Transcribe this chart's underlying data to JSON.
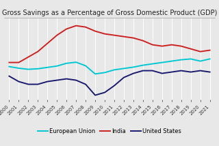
{
  "title": "Gross Savings as a Percentage of Gross Domestic Product (GDP)",
  "years": [
    2000,
    2001,
    2002,
    2003,
    2004,
    2005,
    2006,
    2007,
    2008,
    2009,
    2010,
    2011,
    2012,
    2013,
    2014,
    2015,
    2016,
    2017,
    2018,
    2019,
    2020,
    2021
  ],
  "european_union": [
    22.0,
    21.4,
    21.0,
    21.2,
    21.7,
    22.2,
    23.2,
    23.6,
    22.3,
    19.3,
    19.8,
    20.8,
    21.3,
    21.8,
    22.5,
    23.0,
    23.5,
    24.0,
    24.5,
    24.8,
    24.0,
    24.8
  ],
  "india": [
    23.5,
    23.5,
    25.5,
    27.5,
    30.5,
    33.5,
    35.8,
    37.0,
    36.5,
    35.0,
    34.0,
    33.5,
    33.0,
    32.5,
    31.5,
    30.0,
    29.5,
    30.0,
    29.5,
    28.5,
    27.5,
    28.0
  ],
  "united_states": [
    18.5,
    16.5,
    15.5,
    15.5,
    16.5,
    17.0,
    17.5,
    17.0,
    15.5,
    11.5,
    12.5,
    15.0,
    18.0,
    19.5,
    20.5,
    20.5,
    19.5,
    20.0,
    20.5,
    20.0,
    20.5,
    20.0
  ],
  "eu_color": "#00c8d2",
  "india_color": "#cc2222",
  "us_color": "#1a1a6e",
  "background_color": "#e8e8e8",
  "plot_bg_color": "#e8e8e8",
  "grid_color": "#ffffff",
  "title_fontsize": 7.0,
  "legend_fontsize": 6.0,
  "tick_fontsize": 5.0,
  "ylim": [
    10,
    40
  ],
  "xlim_start": 1999.5,
  "xlim_end": 2021.5,
  "line_width": 1.4
}
